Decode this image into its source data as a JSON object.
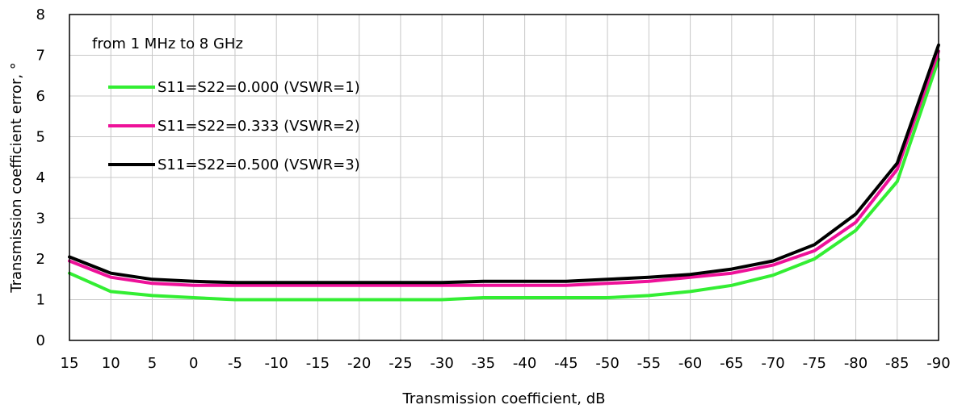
{
  "chart_data": {
    "type": "line",
    "xlabel": "Transmission coefficient, dB",
    "ylabel": "Transmission coefficient error, °",
    "annotation": "from 1 MHz to 8 GHz",
    "x_ticks": [
      15,
      10,
      5,
      0,
      -5,
      -10,
      -15,
      -20,
      -25,
      -30,
      -35,
      -40,
      -45,
      -50,
      -55,
      -60,
      -65,
      -70,
      -75,
      -80,
      -85,
      -90
    ],
    "y_ticks": [
      0,
      1,
      2,
      3,
      4,
      5,
      6,
      7,
      8
    ],
    "xlim": [
      15,
      -90
    ],
    "ylim": [
      0,
      8
    ],
    "grid": true,
    "legend_position": "top-left",
    "x": [
      15,
      10,
      5,
      0,
      -5,
      -10,
      -15,
      -20,
      -25,
      -30,
      -35,
      -40,
      -45,
      -50,
      -55,
      -60,
      -65,
      -70,
      -75,
      -80,
      -85,
      -90
    ],
    "series": [
      {
        "name": "S11=S22=0.000 (VSWR=1)",
        "color": "#33ee33",
        "values": [
          1.65,
          1.2,
          1.1,
          1.05,
          1.0,
          1.0,
          1.0,
          1.0,
          1.0,
          1.0,
          1.05,
          1.05,
          1.05,
          1.05,
          1.1,
          1.2,
          1.35,
          1.6,
          2.0,
          2.7,
          3.9,
          6.9
        ]
      },
      {
        "name": "S11=S22=0.333 (VSWR=2)",
        "color": "#ee1199",
        "values": [
          1.95,
          1.55,
          1.4,
          1.35,
          1.35,
          1.35,
          1.35,
          1.35,
          1.35,
          1.35,
          1.35,
          1.35,
          1.35,
          1.4,
          1.45,
          1.55,
          1.65,
          1.85,
          2.2,
          2.9,
          4.2,
          7.1
        ]
      },
      {
        "name": "S11=S22=0.500 (VSWR=3)",
        "color": "#000000",
        "values": [
          2.05,
          1.65,
          1.5,
          1.45,
          1.42,
          1.42,
          1.42,
          1.42,
          1.42,
          1.42,
          1.45,
          1.45,
          1.45,
          1.5,
          1.55,
          1.62,
          1.75,
          1.95,
          2.35,
          3.1,
          4.35,
          7.25
        ]
      }
    ]
  }
}
